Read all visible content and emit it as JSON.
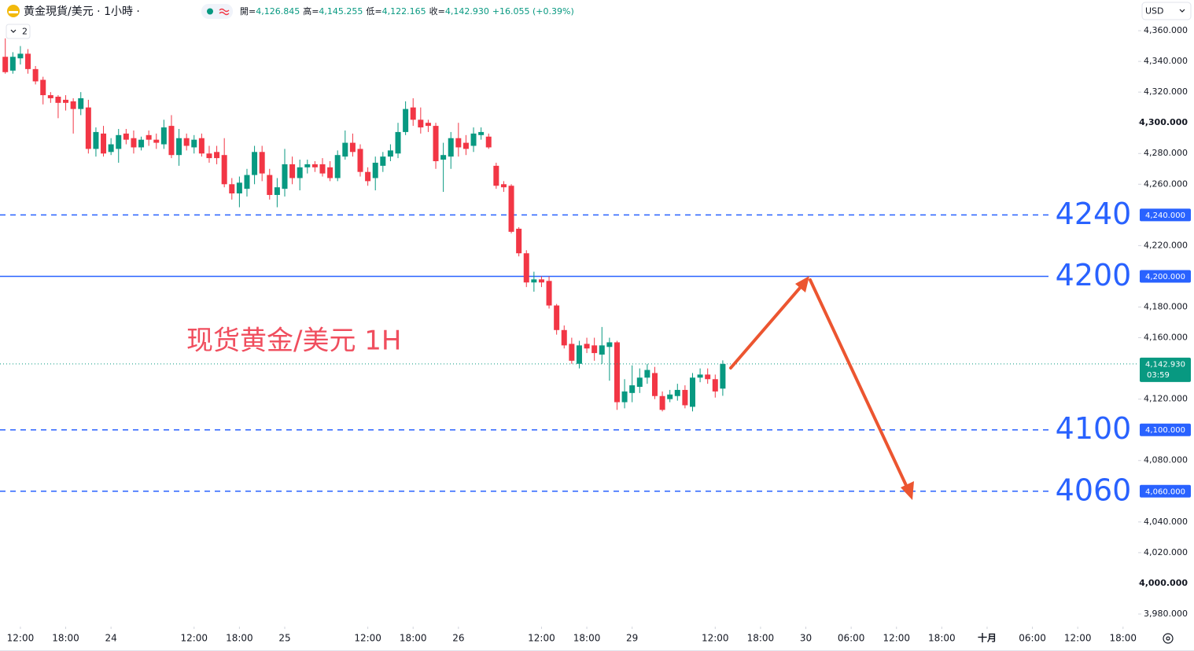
{
  "header": {
    "symbol": "黄金現貨/美元 · 1小時 ·",
    "indicator_count": "2",
    "ohlc": [
      {
        "label": "開=",
        "value": "4,126.845"
      },
      {
        "label": "高=",
        "value": "4,145.255"
      },
      {
        "label": "低=",
        "value": "4,122.165"
      },
      {
        "label": "收=",
        "value": "4,142.930"
      }
    ],
    "change": "+16.055 (+0.39%)",
    "currency": "USD"
  },
  "chart_data": {
    "type": "candlestick",
    "annotation": "现货黄金/美元 1H",
    "x": [
      -2,
      -1,
      0,
      1,
      2,
      3,
      4,
      5,
      6,
      7,
      8,
      9,
      10,
      11,
      12,
      13,
      14,
      15,
      16,
      17,
      18,
      19,
      20,
      21,
      22,
      23,
      24,
      25,
      26,
      27,
      28,
      29,
      30,
      31,
      32,
      33,
      34,
      35,
      36,
      37,
      38,
      39,
      40,
      41,
      42,
      43,
      44,
      45,
      46,
      47,
      48,
      49,
      50,
      51,
      52,
      53,
      54,
      55,
      56,
      57,
      58,
      59,
      60,
      61,
      62,
      63,
      64,
      65,
      66,
      67,
      68,
      69,
      70,
      71,
      72,
      73,
      74,
      75,
      76,
      77,
      78,
      79,
      80,
      81,
      82,
      83,
      84,
      85,
      86,
      87,
      88,
      89,
      90,
      91,
      92,
      93
    ],
    "open": [
      4343,
      4334,
      4342,
      4345,
      4335,
      4328,
      4318,
      4317,
      4315,
      4314,
      4309,
      4310,
      4283,
      4293,
      4281,
      4283,
      4293,
      4290,
      4284,
      4292,
      4289,
      4286,
      4298,
      4279,
      4290,
      4284,
      4290,
      4280,
      4281,
      4279,
      4260,
      4254,
      4257,
      4266,
      4281,
      4266,
      4253,
      4257,
      4273,
      4264,
      4271,
      4273,
      4273,
      4271,
      4264,
      4278,
      4287,
      4283,
      4268,
      4264,
      4272,
      4278,
      4280,
      4294,
      4310,
      4302,
      4300,
      4298,
      4276,
      4278,
      4290,
      4287,
      4285,
      4292,
      4291,
      4272,
      4260,
      4259,
      4231,
      4215,
      4196,
      4198,
      4197,
      4181,
      4165,
      4156,
      4143,
      4156,
      4155,
      4149,
      4154,
      4157,
      4118,
      4124,
      4128,
      4134,
      4137,
      4122,
      4120,
      4122,
      4126,
      4115,
      4134,
      4136,
      4133,
      4126.845
    ],
    "high": [
      4355,
      4346,
      4350,
      4348,
      4337,
      4330,
      4320,
      4318,
      4318,
      4316,
      4320,
      4315,
      4297,
      4298,
      4290,
      4296,
      4296,
      4295,
      4291,
      4295,
      4293,
      4302,
      4305,
      4296,
      4293,
      4292,
      4293,
      4285,
      4285,
      4290,
      4264,
      4265,
      4270,
      4285,
      4285,
      4270,
      4264,
      4283,
      4278,
      4276,
      4276,
      4275,
      4277,
      4275,
      4282,
      4295,
      4293,
      4286,
      4271,
      4278,
      4281,
      4286,
      4300,
      4314,
      4316,
      4310,
      4302,
      4300,
      4287,
      4294,
      4300,
      4292,
      4297,
      4297,
      4293,
      4274,
      4262,
      4260,
      4232,
      4217,
      4203,
      4200,
      4200,
      4182,
      4168,
      4160,
      4158,
      4160,
      4160,
      4167,
      4160,
      4158,
      4133,
      4142,
      4140,
      4143,
      4141,
      4125,
      4126,
      4130,
      4129,
      4137,
      4140,
      4140,
      4136,
      4145.255
    ],
    "low": [
      4332,
      4332,
      4338,
      4332,
      4325,
      4312,
      4313,
      4303,
      4308,
      4293,
      4305,
      4280,
      4278,
      4278,
      4279,
      4274,
      4286,
      4280,
      4282,
      4285,
      4283,
      4283,
      4277,
      4272,
      4282,
      4280,
      4278,
      4274,
      4273,
      4258,
      4250,
      4245,
      4252,
      4260,
      4262,
      4250,
      4245,
      4252,
      4260,
      4256,
      4267,
      4268,
      4265,
      4262,
      4262,
      4276,
      4278,
      4265,
      4259,
      4256,
      4268,
      4275,
      4277,
      4292,
      4298,
      4293,
      4294,
      4270,
      4255,
      4270,
      4278,
      4279,
      4281,
      4289,
      4283,
      4257,
      4255,
      4228,
      4213,
      4193,
      4190,
      4193,
      4179,
      4162,
      4153,
      4143,
      4140,
      4150,
      4145,
      4143,
      4132,
      4113,
      4114,
      4118,
      4124,
      4130,
      4120,
      4112,
      4118,
      4119,
      4114,
      4112,
      4131,
      4130,
      4121,
      4122.165
    ],
    "close": [
      4333,
      4343,
      4345,
      4335,
      4327,
      4318,
      4316,
      4313,
      4313,
      4309,
      4316,
      4283,
      4294,
      4280,
      4286,
      4292,
      4289,
      4284,
      4289,
      4289,
      4287,
      4297,
      4279,
      4290,
      4285,
      4289,
      4280,
      4277,
      4277,
      4260,
      4254,
      4261,
      4266,
      4281,
      4267,
      4253,
      4258,
      4273,
      4264,
      4271,
      4273,
      4271,
      4267,
      4264,
      4279,
      4287,
      4281,
      4268,
      4262,
      4274,
      4278,
      4282,
      4294,
      4309,
      4302,
      4297,
      4298,
      4275,
      4279,
      4290,
      4284,
      4283,
      4293,
      4294,
      4284,
      4259,
      4258,
      4229,
      4215,
      4196,
      4198,
      4196,
      4181,
      4165,
      4155,
      4145,
      4155,
      4153,
      4150,
      4155,
      4157,
      4118,
      4125,
      4129,
      4134,
      4139,
      4122,
      4113,
      4123,
      4126,
      4116,
      4134,
      4136,
      4133,
      4125,
      4142.93
    ],
    "up_color": "#089981",
    "down_color": "#f23645",
    "grid": false,
    "xlim": [
      -2.7,
      148
    ],
    "xticks": [
      {
        "value": 0,
        "label": "12:00"
      },
      {
        "value": 6,
        "label": "18:00"
      },
      {
        "value": 12,
        "label": "24"
      },
      {
        "value": 23,
        "label": "12:00"
      },
      {
        "value": 29,
        "label": "18:00"
      },
      {
        "value": 35,
        "label": "25"
      },
      {
        "value": 46,
        "label": "12:00"
      },
      {
        "value": 52,
        "label": "18:00"
      },
      {
        "value": 58,
        "label": "26"
      },
      {
        "value": 69,
        "label": "12:00"
      },
      {
        "value": 75,
        "label": "18:00"
      },
      {
        "value": 81,
        "label": "29"
      },
      {
        "value": 92,
        "label": "12:00"
      },
      {
        "value": 98,
        "label": "18:00"
      },
      {
        "value": 104,
        "label": "30"
      },
      {
        "value": 110,
        "label": "06:00"
      },
      {
        "value": 116,
        "label": "12:00"
      },
      {
        "value": 122,
        "label": "18:00"
      },
      {
        "value": 128,
        "label": "十月",
        "bold": true
      },
      {
        "value": 134,
        "label": "06:00"
      },
      {
        "value": 140,
        "label": "12:00"
      },
      {
        "value": 146,
        "label": "18:00"
      }
    ],
    "ylim": [
      3971.8,
      4380
    ],
    "yticks": [
      {
        "value": 4360,
        "label": "4,360.000"
      },
      {
        "value": 4340,
        "label": "4,340.000"
      },
      {
        "value": 4320,
        "label": "4,320.000"
      },
      {
        "value": 4300,
        "label": "4,300.000",
        "bold": true
      },
      {
        "value": 4280,
        "label": "4,280.000"
      },
      {
        "value": 4260,
        "label": "4,260.000"
      },
      {
        "value": 4220,
        "label": "4,220.000"
      },
      {
        "value": 4180,
        "label": "4,180.000"
      },
      {
        "value": 4160,
        "label": "4,160.000"
      },
      {
        "value": 4120,
        "label": "4,120.000"
      },
      {
        "value": 4080,
        "label": "4,080.000"
      },
      {
        "value": 4040,
        "label": "4,040.000"
      },
      {
        "value": 4020,
        "label": "4,020.000"
      },
      {
        "value": 4000,
        "label": "4,000.000",
        "bold": true
      },
      {
        "value": 3980,
        "label": "3,980.000"
      }
    ],
    "level_color": "#2962ff",
    "levels": [
      {
        "value": 4240,
        "label": "4240",
        "tag": "4,240.000",
        "line": "dashed"
      },
      {
        "value": 4200,
        "label": "4200",
        "tag": "4,200.000",
        "line": "solid"
      },
      {
        "value": 4100,
        "label": "4100",
        "tag": "4,100.000",
        "line": "dashed"
      },
      {
        "value": 4060,
        "label": "4060",
        "tag": "4,060.000",
        "line": "dashed"
      }
    ],
    "last_price": {
      "tag": "4,142.930",
      "countdown": "03:59"
    }
  }
}
